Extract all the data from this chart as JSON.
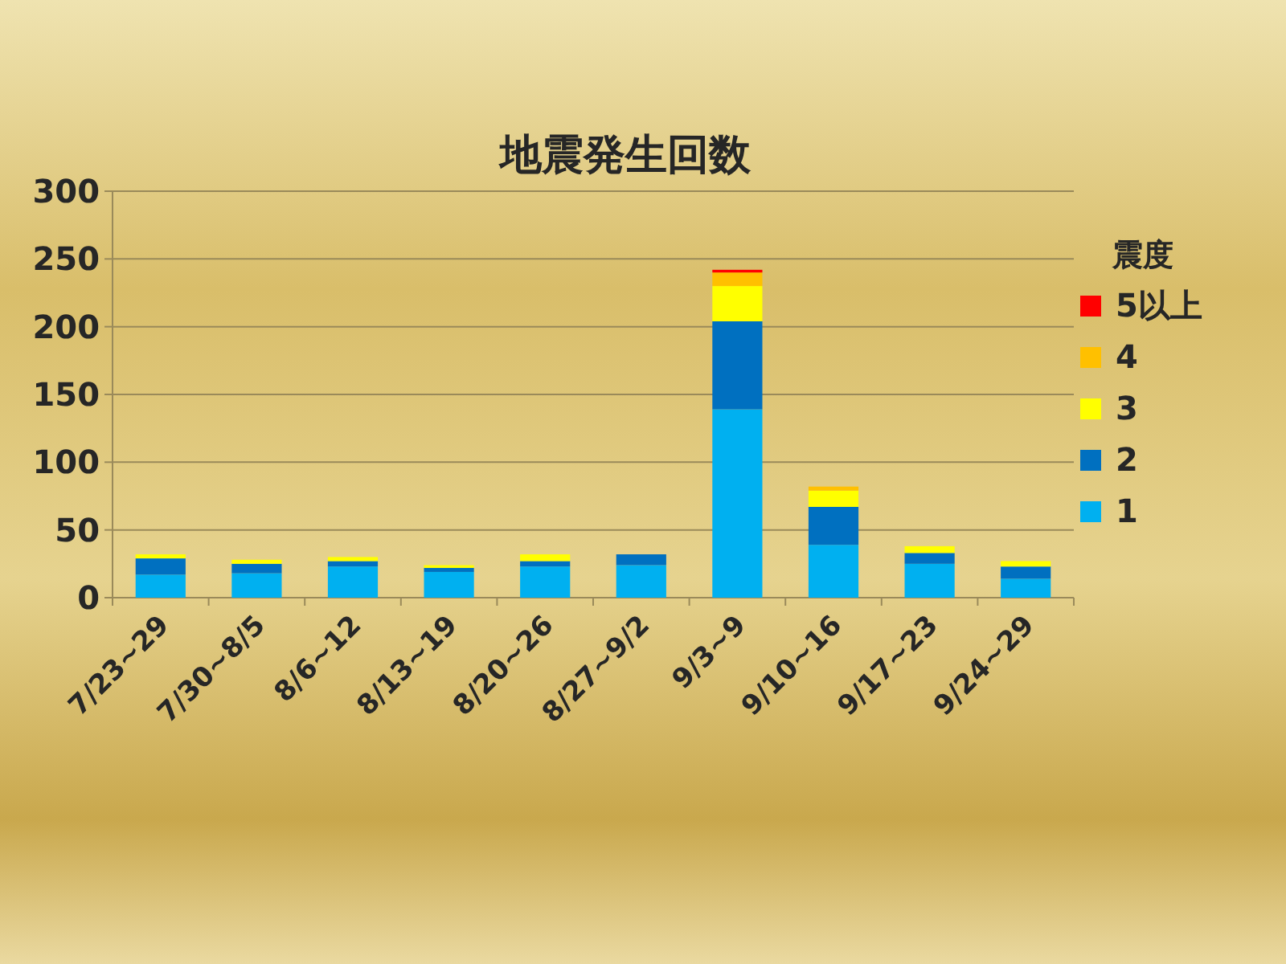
{
  "chart_data": {
    "type": "bar",
    "stacked": true,
    "title": "地震発生回数",
    "legend_title": "震度",
    "legend": "right",
    "grid": "y",
    "categories": [
      "7/23~29",
      "7/30~8/5",
      "8/6~12",
      "8/13~19",
      "8/20~26",
      "8/27~9/2",
      "9/3~9",
      "9/10~16",
      "9/17~23",
      "9/24~29"
    ],
    "ylim": [
      0,
      300
    ],
    "yticks": [
      0,
      50,
      100,
      150,
      200,
      250,
      300
    ],
    "series": [
      {
        "name": "1",
        "color": "#00b0f0",
        "values": [
          17,
          18,
          23,
          19,
          23,
          24,
          139,
          39,
          25,
          14
        ]
      },
      {
        "name": "2",
        "color": "#0070c0",
        "values": [
          12,
          7,
          4,
          3,
          4,
          8,
          65,
          28,
          8,
          9
        ]
      },
      {
        "name": "3",
        "color": "#ffff00",
        "values": [
          3,
          3,
          3,
          2,
          5,
          0,
          26,
          12,
          5,
          4
        ]
      },
      {
        "name": "4",
        "color": "#ffc000",
        "values": [
          0,
          0,
          0,
          0,
          0,
          0,
          10,
          3,
          0,
          0
        ]
      },
      {
        "name": "5以上",
        "color": "#ff0000",
        "values": [
          0,
          0,
          0,
          0,
          0,
          0,
          2,
          0,
          0,
          0
        ]
      }
    ]
  }
}
